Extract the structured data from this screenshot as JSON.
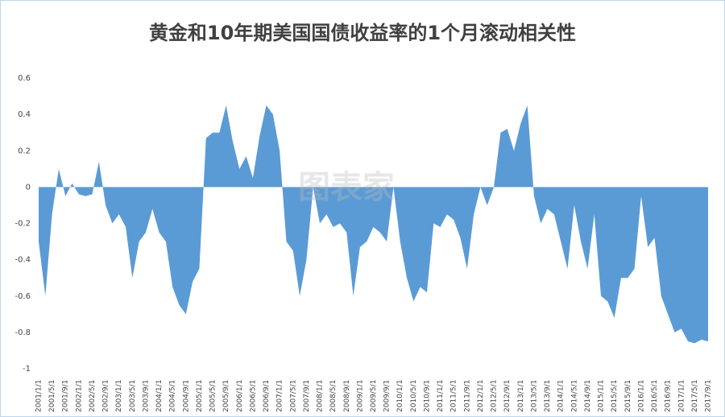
{
  "chart_data": {
    "type": "area",
    "title": "黄金和10年期美国国债收益率的1个月滚动相关性",
    "watermark": "图表家",
    "color": "#5b9bd5",
    "categories": [
      "2001/1/1",
      null,
      "2001/5/1",
      null,
      "2001/9/1",
      null,
      "2002/1/1",
      null,
      "2002/5/1",
      null,
      "2002/9/1",
      null,
      "2003/1/1",
      null,
      "2003/5/1",
      null,
      "2003/9/1",
      null,
      "2004/1/1",
      null,
      "2004/5/1",
      null,
      "2004/9/1",
      null,
      "2005/1/1",
      null,
      "2005/5/1",
      null,
      "2005/9/1",
      null,
      "2006/1/1",
      null,
      "2006/5/1",
      null,
      "2006/9/1",
      null,
      "2007/1/1",
      null,
      "2007/5/1",
      null,
      "2007/9/1",
      null,
      "2008/1/1",
      null,
      "2008/5/1",
      null,
      "2008/9/1",
      null,
      "2009/1/1",
      null,
      "2009/5/1",
      null,
      "2009/9/1",
      null,
      "2010/1/1",
      null,
      "2010/5/1",
      null,
      "2010/9/1",
      null,
      "2011/1/1",
      null,
      "2011/5/1",
      null,
      "2011/9/1",
      null,
      "2012/1/1",
      null,
      "2012/5/1",
      null,
      "2012/9/1",
      null,
      "2013/1/1",
      null,
      "2013/5/1",
      null,
      "2013/9/1",
      null,
      "2014/1/1",
      null,
      "2014/5/1",
      null,
      "2014/9/1",
      null,
      "2015/1/1",
      null,
      "2015/5/1",
      null,
      "2015/9/1",
      null,
      "2016/1/1",
      null,
      "2016/5/1",
      null,
      "2016/9/1",
      null,
      "2017/1/1",
      null,
      "2017/5/1",
      null,
      "2017/9/1"
    ],
    "values": [
      -0.3,
      -0.6,
      -0.15,
      0.1,
      -0.05,
      0.02,
      -0.04,
      -0.05,
      -0.04,
      0.14,
      -0.1,
      -0.2,
      -0.15,
      -0.22,
      -0.5,
      -0.3,
      -0.25,
      -0.12,
      -0.25,
      -0.3,
      -0.55,
      -0.65,
      -0.7,
      -0.52,
      -0.45,
      0.27,
      0.3,
      0.3,
      0.45,
      0.25,
      0.1,
      0.17,
      0.05,
      0.28,
      0.45,
      0.4,
      0.2,
      -0.3,
      -0.35,
      -0.6,
      -0.4,
      0.0,
      -0.2,
      -0.15,
      -0.22,
      -0.2,
      -0.25,
      -0.6,
      -0.33,
      -0.3,
      -0.22,
      -0.25,
      -0.3,
      0.0,
      -0.3,
      -0.5,
      -0.63,
      -0.55,
      -0.58,
      -0.2,
      -0.22,
      -0.15,
      -0.18,
      -0.28,
      -0.45,
      -0.15,
      0.0,
      -0.1,
      0.0,
      0.3,
      0.32,
      0.2,
      0.35,
      0.45,
      -0.05,
      -0.2,
      -0.12,
      -0.15,
      -0.3,
      -0.45,
      -0.1,
      -0.3,
      -0.45,
      -0.15,
      -0.6,
      -0.63,
      -0.72,
      -0.5,
      -0.5,
      -0.45,
      -0.05,
      -0.33,
      -0.28,
      -0.6,
      -0.7,
      -0.8,
      -0.78,
      -0.85,
      -0.86,
      -0.84,
      -0.85
    ],
    "ylim": [
      -1,
      0.6
    ],
    "yticks": [
      0.6,
      0.4,
      0.2,
      0,
      -0.2,
      -0.4,
      -0.6,
      -0.8,
      -1
    ],
    "grid": false
  }
}
